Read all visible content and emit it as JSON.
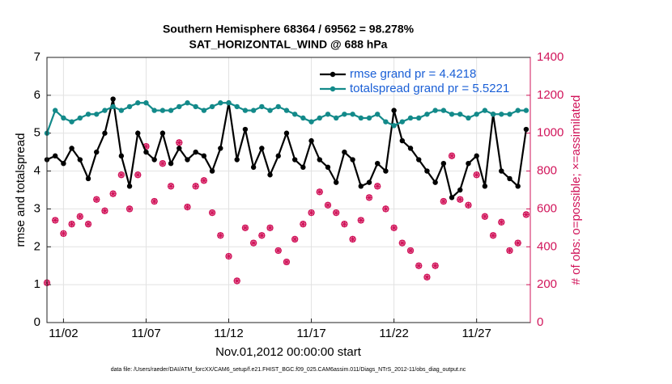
{
  "chart_data": {
    "type": "line",
    "title": "Southern Hemisphere 68364 / 69562 = 98.278%",
    "subtitle": "SAT_HORIZONTAL_WIND @ 688 hPa",
    "xlabel": "Nov.01,2012 00:00:00 start",
    "ylabel": "rmse and totalspread",
    "y2label": "# of obs: o=possible; ×=assimilated",
    "footer": "data file: /Users/raeder/DAI/ATM_forcXX/CAM6_setup/f.e21.FHIST_BGC.f09_025.CAM6assim.011/Diags_NTrS_2012-11/obs_diag_output.nc",
    "x": [
      0,
      0.5,
      1,
      1.5,
      2,
      2.5,
      3,
      3.5,
      4,
      4.5,
      5,
      5.5,
      6,
      6.5,
      7,
      7.5,
      8,
      8.5,
      9,
      9.5,
      10,
      10.5,
      11,
      11.5,
      12,
      12.5,
      13,
      13.5,
      14,
      14.5,
      15,
      15.5,
      16,
      16.5,
      17,
      17.5,
      18,
      18.5,
      19,
      19.5,
      20,
      20.5,
      21,
      21.5,
      22,
      22.5,
      23,
      23.5,
      24,
      24.5,
      25,
      25.5,
      26,
      26.5,
      27,
      27.5,
      28,
      28.5,
      29
    ],
    "xlim": [
      0,
      29.25
    ],
    "xticks": [
      {
        "value": 1,
        "label": "11/02"
      },
      {
        "value": 6,
        "label": "11/07"
      },
      {
        "value": 11,
        "label": "11/12"
      },
      {
        "value": 16,
        "label": "11/17"
      },
      {
        "value": 21,
        "label": "11/22"
      },
      {
        "value": 26,
        "label": "11/27"
      }
    ],
    "ylim": [
      0,
      7
    ],
    "yticks": [
      0,
      1,
      2,
      3,
      4,
      5,
      6,
      7
    ],
    "y2lim": [
      0,
      1400
    ],
    "y2ticks": [
      0,
      200,
      400,
      600,
      800,
      1000,
      1200,
      1400
    ],
    "y2color": "#d1145a",
    "grid": true,
    "legend": "upper right",
    "series": [
      {
        "name": "rmse grand pr = 4.4218",
        "color": "#000000",
        "marker": "dot",
        "values": [
          4.3,
          4.4,
          4.2,
          4.6,
          4.3,
          3.8,
          4.5,
          5.0,
          5.9,
          4.4,
          3.6,
          5.0,
          4.5,
          4.3,
          5.0,
          4.2,
          4.6,
          4.3,
          4.5,
          4.4,
          4.0,
          4.6,
          5.8,
          4.3,
          5.1,
          4.1,
          4.6,
          3.9,
          4.4,
          5.0,
          4.3,
          4.1,
          4.8,
          4.3,
          4.1,
          3.7,
          4.5,
          4.3,
          3.6,
          3.7,
          4.2,
          4.0,
          5.6,
          4.8,
          4.6,
          4.3,
          4.0,
          3.7,
          4.2,
          3.3,
          3.5,
          4.2,
          4.4,
          3.6,
          5.5,
          4.0,
          3.8,
          3.6,
          5.1
        ]
      },
      {
        "name": "totalspread grand pr = 5.5221",
        "color": "#138a8a",
        "marker": "dot",
        "values": [
          5.0,
          5.6,
          5.4,
          5.3,
          5.4,
          5.5,
          5.5,
          5.6,
          5.7,
          5.6,
          5.7,
          5.8,
          5.8,
          5.6,
          5.6,
          5.6,
          5.7,
          5.8,
          5.7,
          5.6,
          5.7,
          5.8,
          5.8,
          5.7,
          5.6,
          5.6,
          5.7,
          5.6,
          5.7,
          5.6,
          5.5,
          5.4,
          5.3,
          5.4,
          5.5,
          5.4,
          5.5,
          5.5,
          5.4,
          5.4,
          5.5,
          5.3,
          5.2,
          5.3,
          5.4,
          5.4,
          5.5,
          5.6,
          5.6,
          5.5,
          5.5,
          5.4,
          5.5,
          5.6,
          5.5,
          5.5,
          5.5,
          5.6,
          5.6
        ]
      },
      {
        "color": "#d1145a",
        "marker": "obs",
        "axis": "y2",
        "values": [
          210,
          540,
          470,
          520,
          560,
          520,
          650,
          590,
          680,
          780,
          600,
          780,
          930,
          640,
          840,
          720,
          950,
          610,
          720,
          750,
          580,
          460,
          350,
          220,
          500,
          420,
          460,
          500,
          380,
          320,
          440,
          520,
          580,
          690,
          620,
          580,
          520,
          440,
          540,
          660,
          720,
          600,
          500,
          420,
          380,
          300,
          240,
          300,
          640,
          880,
          650,
          620,
          780,
          560,
          460,
          530,
          380,
          420,
          570
        ]
      }
    ]
  }
}
